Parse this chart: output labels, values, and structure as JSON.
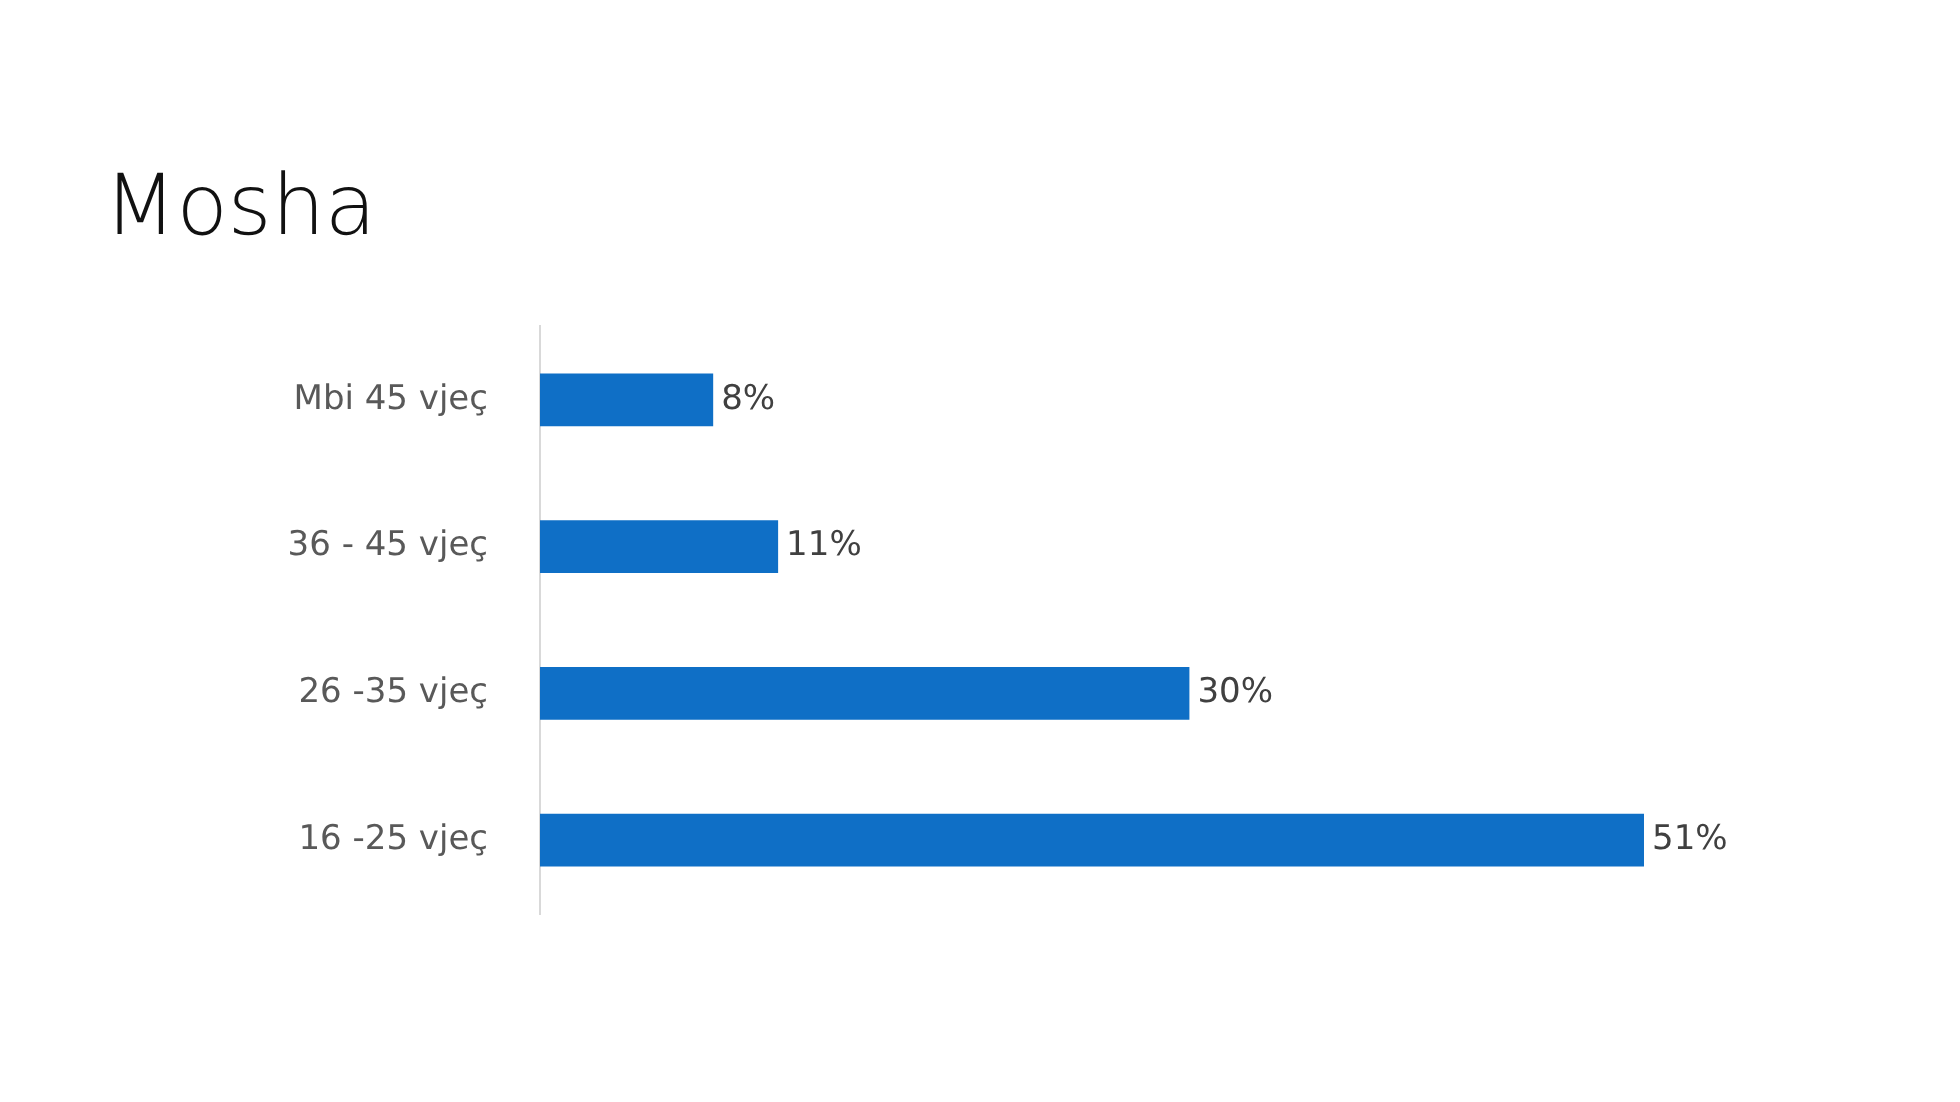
{
  "chart_data": {
    "type": "bar",
    "title": "Mosha",
    "orientation": "horizontal",
    "categories": [
      "Mbi 45 vjeç",
      "36 - 45 vjeç",
      "26 -35 vjeç",
      "16 -25 vjeç"
    ],
    "values": [
      8,
      11,
      30,
      51
    ],
    "value_labels": [
      "8%",
      "11%",
      "30%",
      "51%"
    ],
    "color": "#0f6fc6"
  }
}
